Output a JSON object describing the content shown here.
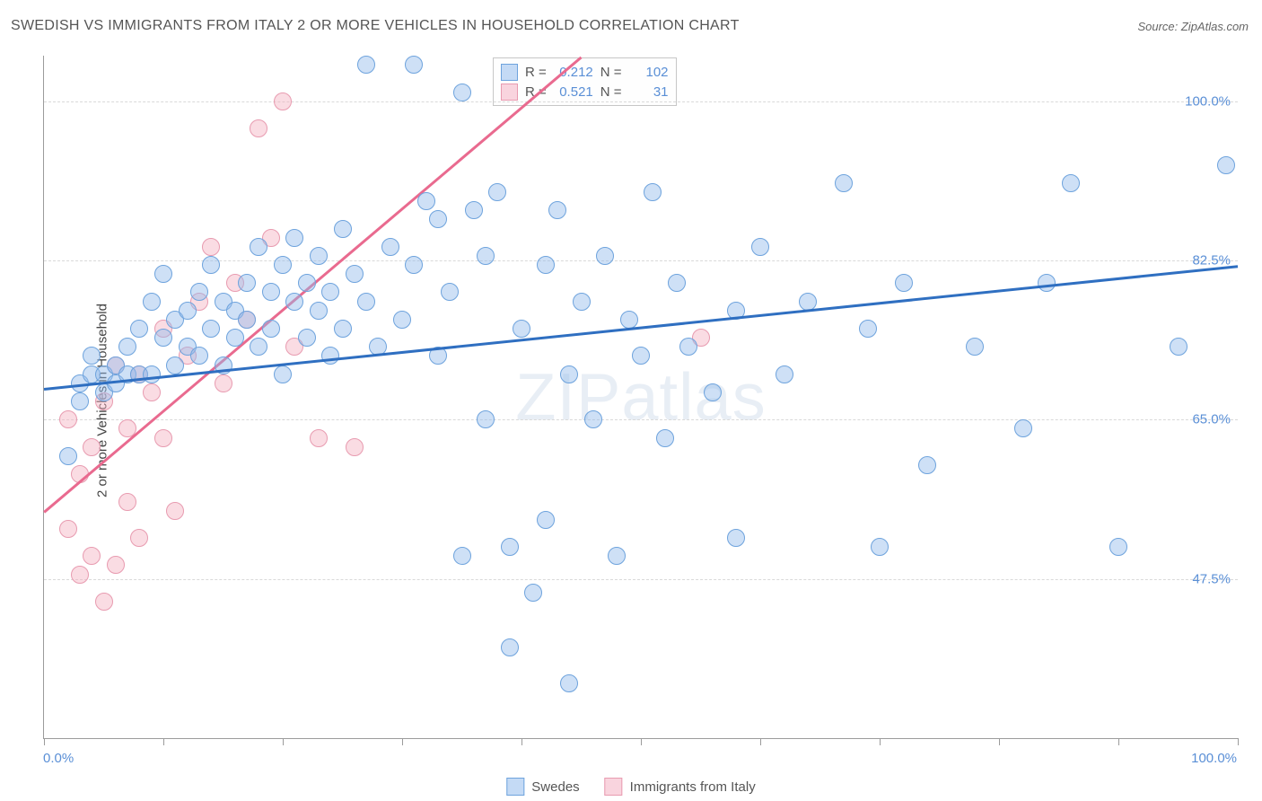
{
  "title": "SWEDISH VS IMMIGRANTS FROM ITALY 2 OR MORE VEHICLES IN HOUSEHOLD CORRELATION CHART",
  "source": "Source: ZipAtlas.com",
  "watermark": "ZIPatlas",
  "ylabel": "2 or more Vehicles in Household",
  "chart": {
    "type": "scatter",
    "xlim": [
      0,
      100
    ],
    "ylim": [
      30,
      105
    ],
    "grid_color": "#d9d9d9",
    "axis_color": "#9b9b9b",
    "tick_label_color": "#5a8fd6",
    "y_gridlines": [
      47.5,
      65.0,
      82.5,
      100.0
    ],
    "y_tick_labels": [
      "47.5%",
      "65.0%",
      "82.5%",
      "100.0%"
    ],
    "x_ticks": [
      0,
      10,
      20,
      30,
      40,
      50,
      60,
      70,
      80,
      90,
      100
    ],
    "x_min_label": "0.0%",
    "x_max_label": "100.0%",
    "marker_radius": 9,
    "marker_border_width": 1.5
  },
  "series": {
    "swedes": {
      "label": "Swedes",
      "fill": "rgba(147,187,236,0.45)",
      "stroke": "#6ea3dd",
      "line_color": "#2f6fc1",
      "trend": {
        "x1": 0,
        "y1": 68.5,
        "x2": 100,
        "y2": 82.0
      },
      "R": "0.212",
      "N": "102",
      "points": [
        [
          2,
          61
        ],
        [
          3,
          69
        ],
        [
          3,
          67
        ],
        [
          4,
          70
        ],
        [
          4,
          72
        ],
        [
          5,
          70
        ],
        [
          5,
          68
        ],
        [
          6,
          69
        ],
        [
          6,
          71
        ],
        [
          7,
          70
        ],
        [
          7,
          73
        ],
        [
          8,
          70
        ],
        [
          8,
          75
        ],
        [
          9,
          78
        ],
        [
          9,
          70
        ],
        [
          10,
          74
        ],
        [
          10,
          81
        ],
        [
          11,
          76
        ],
        [
          11,
          71
        ],
        [
          12,
          73
        ],
        [
          12,
          77
        ],
        [
          13,
          79
        ],
        [
          13,
          72
        ],
        [
          14,
          75
        ],
        [
          14,
          82
        ],
        [
          15,
          78
        ],
        [
          15,
          71
        ],
        [
          16,
          77
        ],
        [
          16,
          74
        ],
        [
          17,
          80
        ],
        [
          17,
          76
        ],
        [
          18,
          73
        ],
        [
          18,
          84
        ],
        [
          19,
          79
        ],
        [
          19,
          75
        ],
        [
          20,
          82
        ],
        [
          20,
          70
        ],
        [
          21,
          78
        ],
        [
          21,
          85
        ],
        [
          22,
          74
        ],
        [
          22,
          80
        ],
        [
          23,
          77
        ],
        [
          23,
          83
        ],
        [
          24,
          72
        ],
        [
          24,
          79
        ],
        [
          25,
          86
        ],
        [
          25,
          75
        ],
        [
          26,
          81
        ],
        [
          27,
          78
        ],
        [
          27,
          104
        ],
        [
          28,
          73
        ],
        [
          29,
          84
        ],
        [
          30,
          76
        ],
        [
          31,
          104
        ],
        [
          31,
          82
        ],
        [
          32,
          89
        ],
        [
          33,
          87
        ],
        [
          33,
          72
        ],
        [
          34,
          79
        ],
        [
          35,
          101
        ],
        [
          35,
          50
        ],
        [
          36,
          88
        ],
        [
          37,
          83
        ],
        [
          37,
          65
        ],
        [
          38,
          90
        ],
        [
          39,
          51
        ],
        [
          39,
          40
        ],
        [
          40,
          75
        ],
        [
          41,
          46
        ],
        [
          42,
          82
        ],
        [
          42,
          54
        ],
        [
          43,
          88
        ],
        [
          44,
          70
        ],
        [
          44,
          36
        ],
        [
          45,
          78
        ],
        [
          46,
          65
        ],
        [
          47,
          83
        ],
        [
          48,
          50
        ],
        [
          49,
          76
        ],
        [
          50,
          72
        ],
        [
          51,
          90
        ],
        [
          52,
          63
        ],
        [
          53,
          80
        ],
        [
          54,
          73
        ],
        [
          56,
          68
        ],
        [
          58,
          77
        ],
        [
          58,
          52
        ],
        [
          60,
          84
        ],
        [
          62,
          70
        ],
        [
          64,
          78
        ],
        [
          67,
          91
        ],
        [
          69,
          75
        ],
        [
          70,
          51
        ],
        [
          72,
          80
        ],
        [
          74,
          60
        ],
        [
          78,
          73
        ],
        [
          82,
          64
        ],
        [
          84,
          80
        ],
        [
          86,
          91
        ],
        [
          90,
          51
        ],
        [
          95,
          73
        ],
        [
          99,
          93
        ]
      ]
    },
    "italy": {
      "label": "Immigrants from Italy",
      "fill": "rgba(244,177,194,0.45)",
      "stroke": "#e89bb0",
      "line_color": "#e96a8f",
      "trend": {
        "x1": 0,
        "y1": 55.0,
        "x2": 45,
        "y2": 105.0
      },
      "R": "0.521",
      "N": "31",
      "points": [
        [
          2,
          53
        ],
        [
          2,
          65
        ],
        [
          3,
          48
        ],
        [
          3,
          59
        ],
        [
          4,
          50
        ],
        [
          4,
          62
        ],
        [
          5,
          45
        ],
        [
          5,
          67
        ],
        [
          6,
          49
        ],
        [
          6,
          71
        ],
        [
          7,
          56
        ],
        [
          7,
          64
        ],
        [
          8,
          52
        ],
        [
          8,
          70
        ],
        [
          9,
          68
        ],
        [
          10,
          63
        ],
        [
          10,
          75
        ],
        [
          11,
          55
        ],
        [
          12,
          72
        ],
        [
          13,
          78
        ],
        [
          14,
          84
        ],
        [
          15,
          69
        ],
        [
          16,
          80
        ],
        [
          17,
          76
        ],
        [
          18,
          97
        ],
        [
          19,
          85
        ],
        [
          20,
          100
        ],
        [
          21,
          73
        ],
        [
          23,
          63
        ],
        [
          26,
          62
        ],
        [
          55,
          74
        ]
      ]
    }
  },
  "legend_bottom": [
    {
      "label": "Swedes",
      "fill": "rgba(147,187,236,0.55)",
      "stroke": "#6ea3dd"
    },
    {
      "label": "Immigrants from Italy",
      "fill": "rgba(244,177,194,0.55)",
      "stroke": "#e89bb0"
    }
  ],
  "statbox": {
    "rows": [
      {
        "fill": "rgba(147,187,236,0.55)",
        "stroke": "#6ea3dd",
        "R": "0.212",
        "N": "102"
      },
      {
        "fill": "rgba(244,177,194,0.55)",
        "stroke": "#e89bb0",
        "R": "0.521",
        "N": "31"
      }
    ]
  }
}
